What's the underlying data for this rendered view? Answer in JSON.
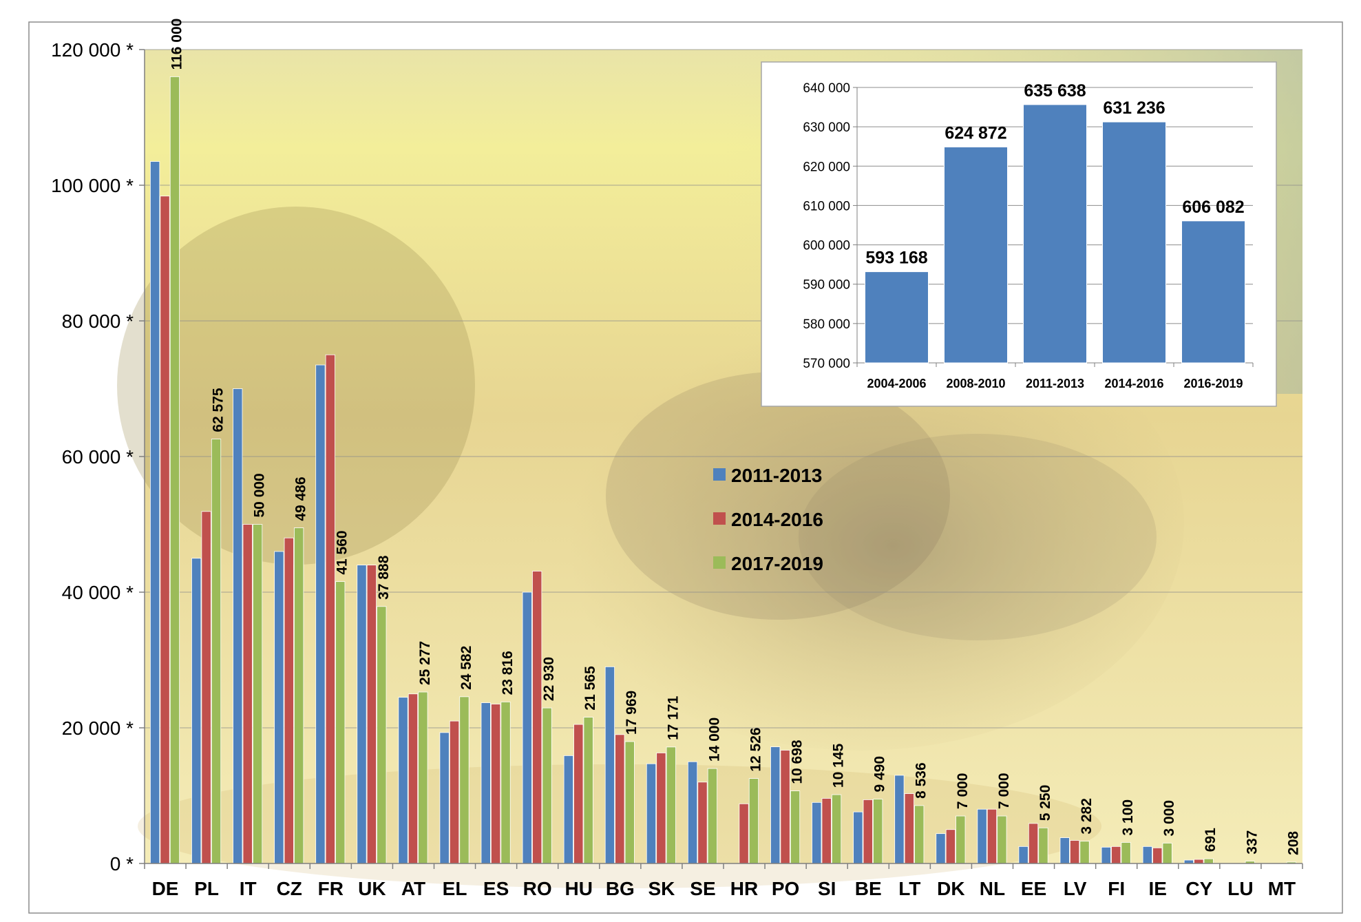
{
  "chart_data": [
    {
      "type": "bar",
      "categories": [
        "DE",
        "PL",
        "IT",
        "CZ",
        "FR",
        "UK",
        "AT",
        "EL",
        "ES",
        "RO",
        "HU",
        "BG",
        "SK",
        "SE",
        "HR",
        "PO",
        "SI",
        "BE",
        "LT",
        "DK",
        "NL",
        "EE",
        "LV",
        "FI",
        "IE",
        "CY",
        "LU",
        "MT"
      ],
      "series": [
        {
          "name": "2011-2013",
          "color": "#4f81bd",
          "values": [
            103500,
            45000,
            70000,
            46000,
            73500,
            44000,
            24500,
            19300,
            23700,
            40000,
            15900,
            29000,
            14700,
            15000,
            0,
            17200,
            9000,
            7600,
            13000,
            4400,
            8000,
            2500,
            3800,
            2400,
            2500,
            500,
            0,
            0
          ]
        },
        {
          "name": "2014-2016",
          "color": "#c0504d",
          "values": [
            98400,
            51900,
            50000,
            48000,
            75000,
            44000,
            25000,
            21000,
            23500,
            43100,
            20500,
            19000,
            16300,
            12000,
            8800,
            16700,
            9600,
            9400,
            10300,
            5000,
            8000,
            5900,
            3400,
            2500,
            2300,
            600,
            0,
            0
          ]
        },
        {
          "name": "2017-2019",
          "color": "#9bbb59",
          "values": [
            116000,
            62575,
            50000,
            49486,
            41560,
            37888,
            25277,
            24582,
            23816,
            22930,
            21565,
            17969,
            17171,
            14000,
            12526,
            10698,
            10145,
            9490,
            8536,
            7000,
            7000,
            5250,
            3282,
            3100,
            3000,
            691,
            337,
            208
          ],
          "labels": [
            "116 000",
            "62 575",
            "50 000",
            "49 486",
            "41 560",
            "37 888",
            "25 277",
            "24 582",
            "23 816",
            "22 930",
            "21 565",
            "17 969",
            "17 171",
            "14 000",
            "12 526",
            "10 698",
            "10 145",
            "9 490",
            "8 536",
            "7 000",
            "7 000",
            "5 250",
            "3 282",
            "3 100",
            "3 000",
            "691",
            "337",
            "208"
          ]
        }
      ],
      "ylim": [
        0,
        120000
      ],
      "yticks": [
        0,
        20000,
        40000,
        60000,
        80000,
        100000,
        120000
      ],
      "ytick_labels": [
        "0 *",
        "20 000 *",
        "40 000 *",
        "60 000 *",
        "80 000 *",
        "100 000 *",
        "120 000 *"
      ],
      "legend_position": "center",
      "grid": true
    },
    {
      "type": "bar",
      "categories": [
        "2004-2006",
        "2008-2010",
        "2011-2013",
        "2014-2016",
        "2016-2019"
      ],
      "values": [
        593168,
        624872,
        635638,
        631236,
        606082
      ],
      "labels": [
        "593 168",
        "624 872",
        "635 638",
        "631 236",
        "606 082"
      ],
      "color": "#4f81bd",
      "ylim": [
        570000,
        640000
      ],
      "yticks": [
        570000,
        580000,
        590000,
        600000,
        610000,
        620000,
        630000,
        640000
      ],
      "ytick_labels": [
        "570 000",
        "580 000",
        "590 000",
        "600 000",
        "610 000",
        "620 000",
        "630 000",
        "640 000"
      ],
      "position": "top-right inset",
      "grid": true
    }
  ]
}
